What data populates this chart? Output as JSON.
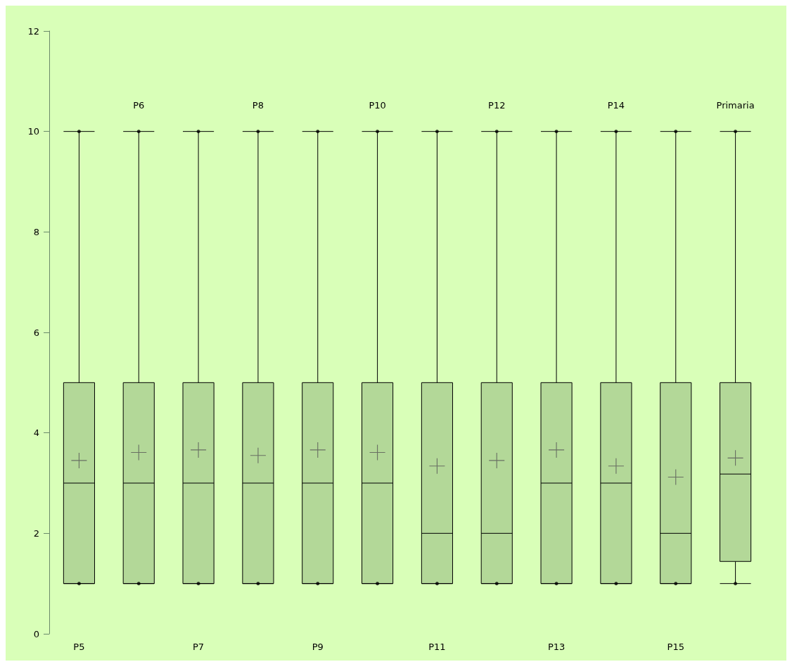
{
  "chart_data": {
    "type": "box",
    "categories": [
      "P5",
      "P6",
      "P7",
      "P8",
      "P9",
      "P10",
      "P11",
      "P12",
      "P13",
      "P14",
      "P15",
      "Primaria"
    ],
    "boxes": [
      {
        "low": 1,
        "q1": 1,
        "median": 3,
        "q3": 5,
        "high": 10
      },
      {
        "low": 1,
        "q1": 1,
        "median": 3,
        "q3": 5,
        "high": 10
      },
      {
        "low": 1,
        "q1": 1,
        "median": 3,
        "q3": 5,
        "high": 10
      },
      {
        "low": 1,
        "q1": 1,
        "median": 3,
        "q3": 5,
        "high": 10
      },
      {
        "low": 1,
        "q1": 1,
        "median": 3,
        "q3": 5,
        "high": 10
      },
      {
        "low": 1,
        "q1": 1,
        "median": 3,
        "q3": 5,
        "high": 10
      },
      {
        "low": 1,
        "q1": 1,
        "median": 2,
        "q3": 5,
        "high": 10
      },
      {
        "low": 1,
        "q1": 1,
        "median": 2,
        "q3": 5,
        "high": 10
      },
      {
        "low": 1,
        "q1": 1,
        "median": 3,
        "q3": 5,
        "high": 10
      },
      {
        "low": 1,
        "q1": 1,
        "median": 3,
        "q3": 5,
        "high": 10
      },
      {
        "low": 1,
        "q1": 1,
        "median": 2,
        "q3": 5,
        "high": 10
      },
      {
        "low": 1,
        "q1": 1.44,
        "median": 3.18,
        "q3": 5,
        "high": 10
      }
    ],
    "series": [
      {
        "type": "scatter",
        "color": "#555555",
        "x": [
          "P5",
          "P6",
          "P7",
          "P8",
          "P9",
          "P10",
          "P11",
          "P12",
          "P13",
          "P14",
          "P15",
          "Primaria"
        ],
        "values": [
          3.45,
          3.61,
          3.66,
          3.55,
          3.66,
          3.61,
          3.34,
          3.45,
          3.66,
          3.34,
          3.12,
          3.5
        ]
      }
    ],
    "color": "#b3d898",
    "ylim": [
      0,
      12
    ],
    "yticks": [
      0,
      2,
      4,
      6,
      8,
      10,
      12
    ],
    "grid": false,
    "legend": false,
    "marker": "cross"
  }
}
